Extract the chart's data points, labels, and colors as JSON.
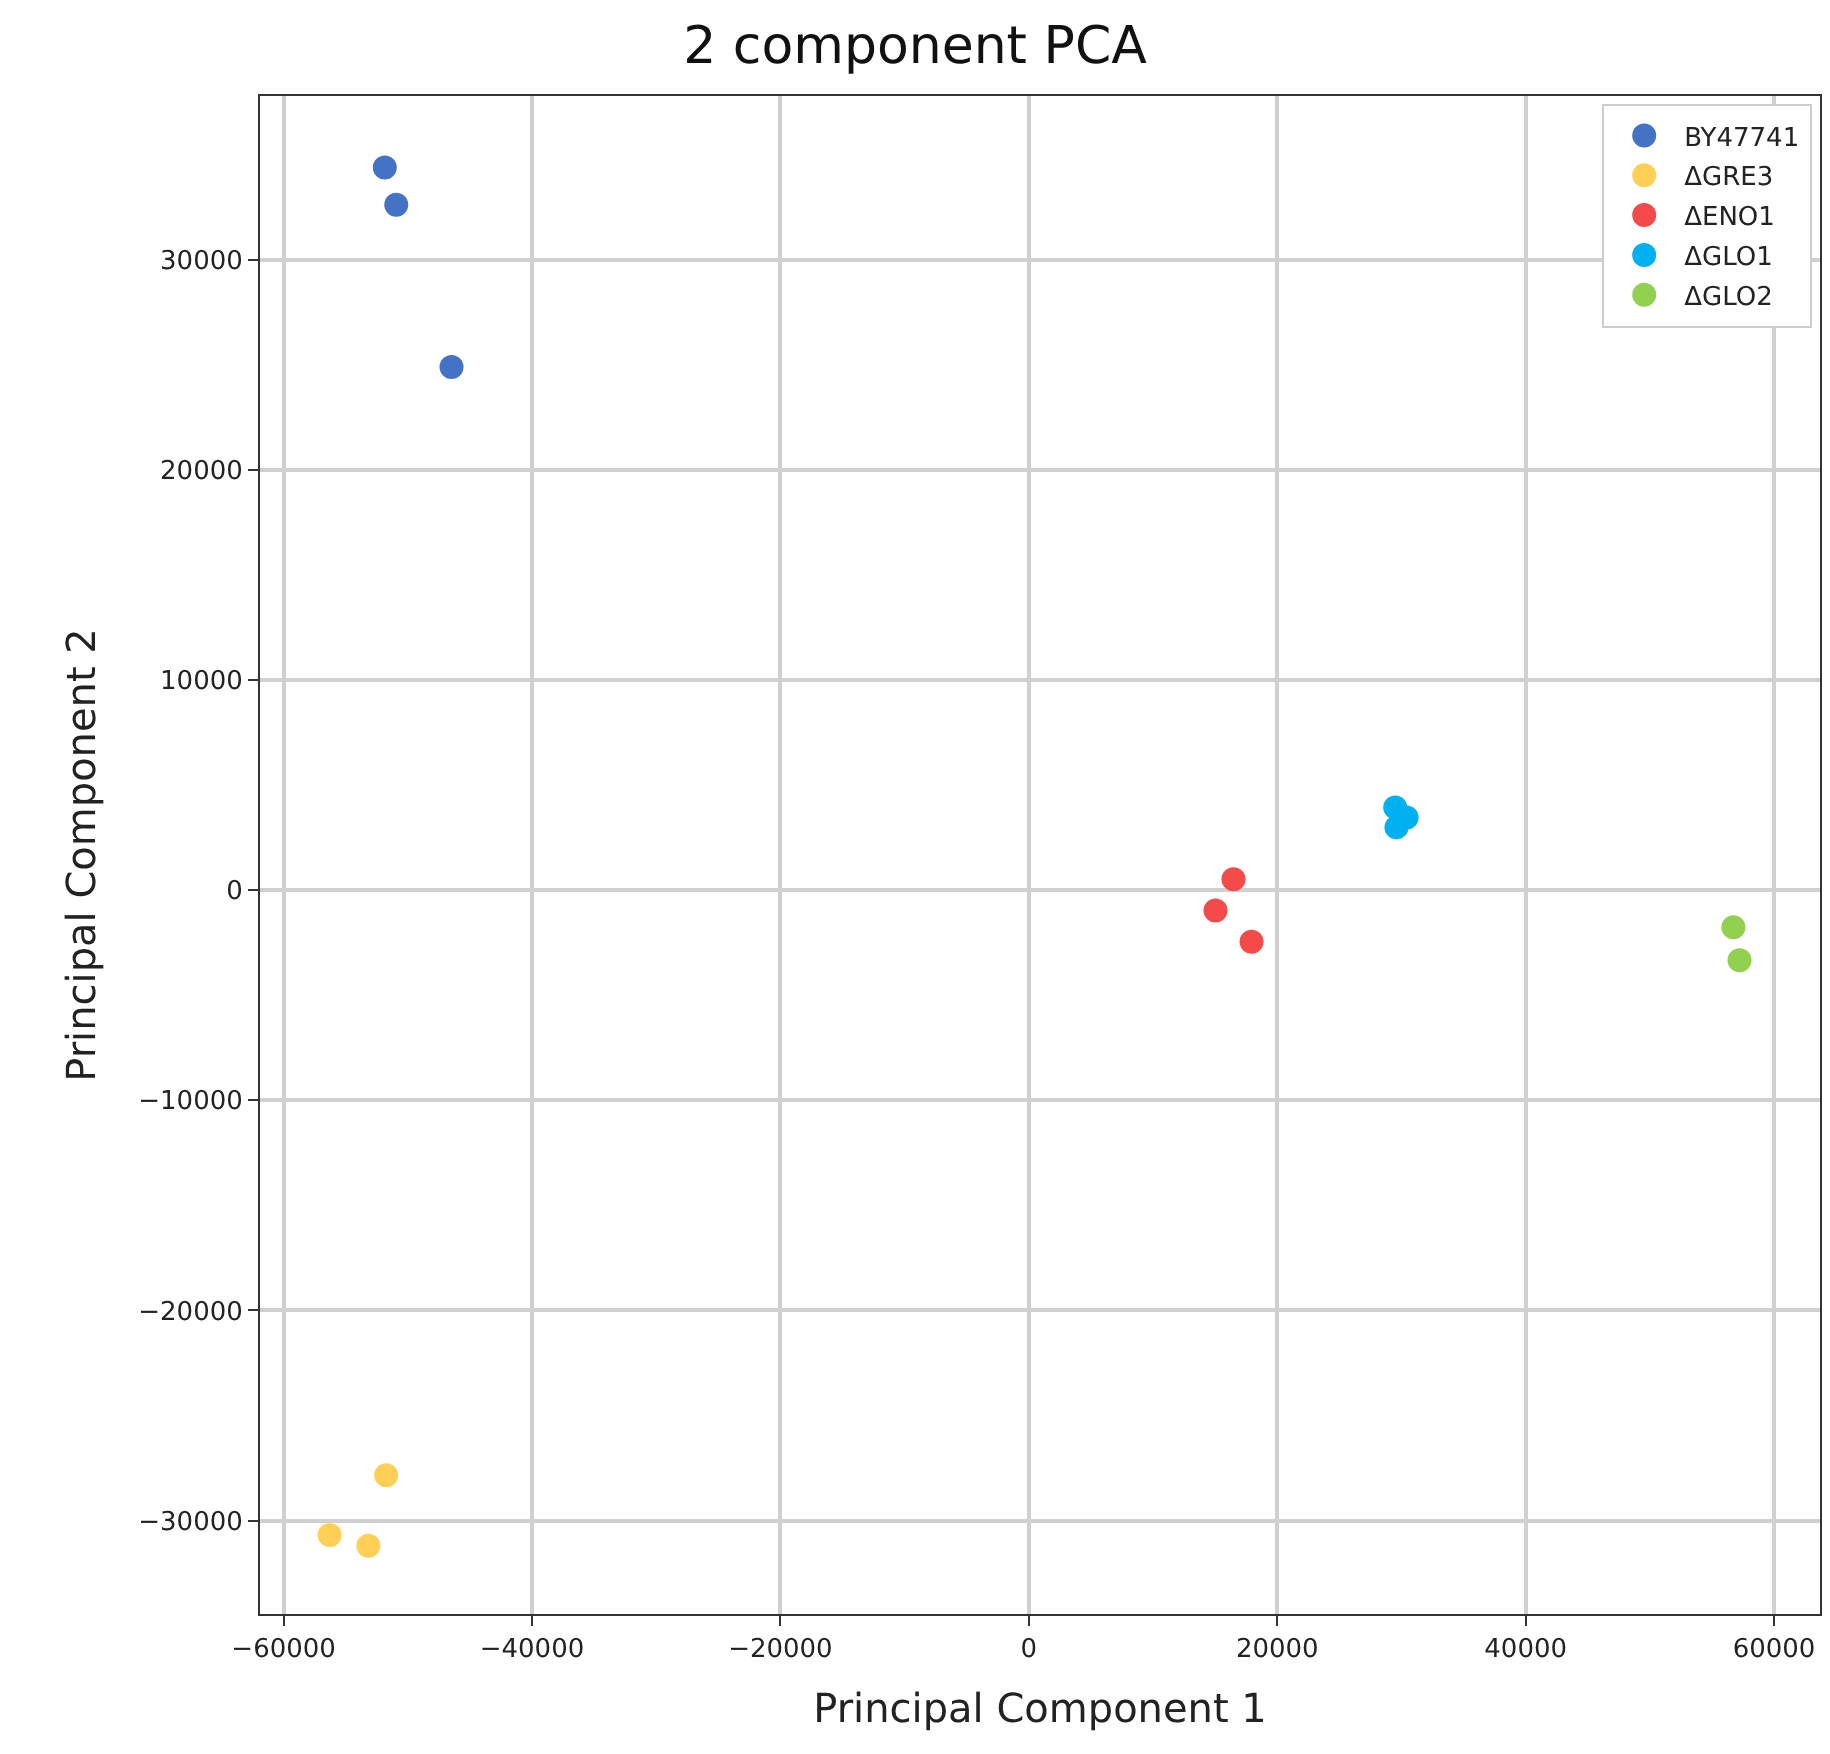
{
  "chart_data": {
    "type": "scatter",
    "title": "2 component PCA",
    "xlabel": "Principal Component 1",
    "ylabel": "Principal Component 2",
    "xlim": [
      -61900,
      63700
    ],
    "ylim": [
      -34450,
      37800
    ],
    "xticks": [
      {
        "value": -60000,
        "label": "−60000"
      },
      {
        "value": -40000,
        "label": "−40000"
      },
      {
        "value": -20000,
        "label": "−20000"
      },
      0,
      20000,
      40000,
      60000
    ],
    "yticks": [
      {
        "value": -30000,
        "label": "−30000"
      },
      {
        "value": -20000,
        "label": "−20000"
      },
      {
        "value": -10000,
        "label": "−10000"
      },
      0,
      10000,
      20000,
      30000
    ],
    "grid": true,
    "legend": "top right",
    "marker": "circle",
    "series": [
      {
        "name": "BY47741",
        "color": "#4472c4",
        "x": [
          -51850,
          -50930,
          -46480
        ],
        "values": [
          34400,
          32620,
          24900
        ]
      },
      {
        "name": "ΔGRE3",
        "color": "#ffd055",
        "x": [
          -51740,
          -56290,
          -53180
        ],
        "values": [
          -27850,
          -30690,
          -31200
        ]
      },
      {
        "name": "ΔENO1",
        "color": "#f44a4a",
        "x": [
          16480,
          15030,
          17930
        ],
        "values": [
          520,
          -970,
          -2450
        ]
      },
      {
        "name": "ΔGLO1",
        "color": "#00b0f0",
        "x": [
          29500,
          30420,
          29600
        ],
        "values": [
          3940,
          3460,
          2990
        ]
      },
      {
        "name": "ΔGLO2",
        "color": "#92d050",
        "x": [
          56730,
          57220
        ],
        "values": [
          -1760,
          -3340
        ]
      }
    ]
  }
}
